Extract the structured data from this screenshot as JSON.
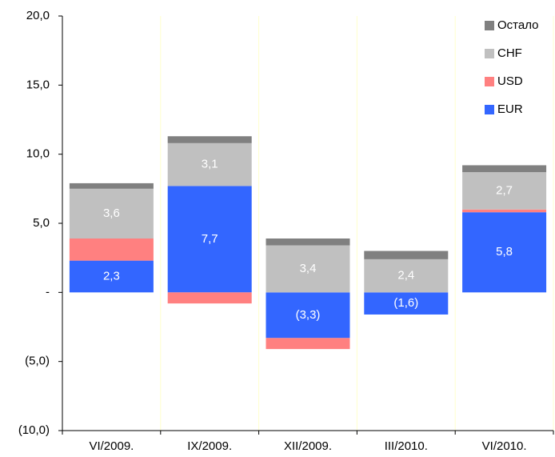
{
  "chart_data": {
    "type": "stacked_bar",
    "categories": [
      "VI/2009.",
      "IX/2009.",
      "XII/2009.",
      "III/2010.",
      "VI/2010."
    ],
    "series": [
      {
        "name": "EUR",
        "color": "#3366ff",
        "values": [
          2.3,
          7.7,
          -3.3,
          -1.6,
          5.8
        ],
        "value_labels": [
          "2,3",
          "7,7",
          "(3,3)",
          "(1,6)",
          "5,8"
        ]
      },
      {
        "name": "USD",
        "color": "#ff8080",
        "values": [
          1.6,
          -0.8,
          -0.8,
          0,
          0.2
        ]
      },
      {
        "name": "CHF",
        "color": "#c0c0c0",
        "values": [
          3.6,
          3.1,
          3.4,
          2.4,
          2.7
        ],
        "value_labels": [
          "3,6",
          "3,1",
          "3,4",
          "2,4",
          "2,7"
        ]
      },
      {
        "name": "Остало",
        "color": "#808080",
        "values": [
          0.4,
          0.5,
          0.5,
          0.6,
          0.5
        ]
      }
    ],
    "ylim": [
      -10,
      20
    ],
    "yticks": [
      {
        "value": -10,
        "label": "(10,0)"
      },
      {
        "value": -5,
        "label": "(5,0)"
      },
      {
        "value": 0,
        "label": "-"
      },
      {
        "value": 5,
        "label": "5,0"
      },
      {
        "value": 10,
        "label": "10,0"
      },
      {
        "value": 15,
        "label": "15,0"
      },
      {
        "value": 20,
        "label": "20,0"
      }
    ],
    "legend": "top-right"
  }
}
